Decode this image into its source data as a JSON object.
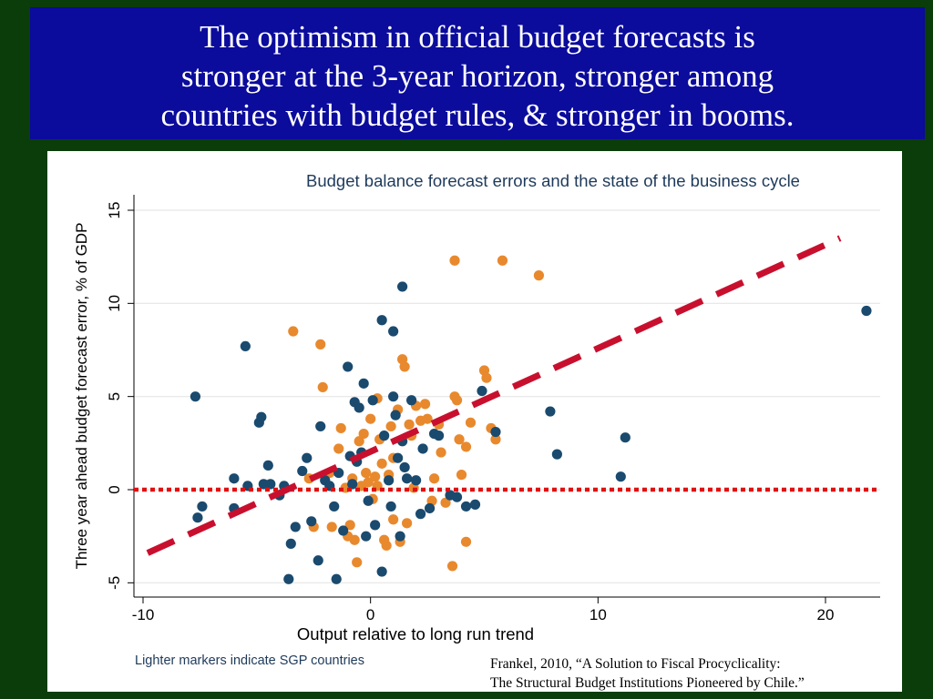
{
  "slide": {
    "title_lines": [
      "The optimism in official budget forecasts is",
      "stronger at the 3-year horizon, stronger among",
      "countries with budget rules,   & stronger in booms."
    ],
    "citation_lines": [
      "Frankel, 2010, “A Solution to Fiscal Procyclicality:",
      "The Structural Budget Institutions Pioneered by Chile.”"
    ],
    "colors": {
      "background": "#0b3d0b",
      "title_box": "#0b0b9c",
      "non_sgp_marker": "#1a4a6e",
      "sgp_marker": "#e8892e",
      "regression_line": "#c8102e",
      "zero_line": "#e01010"
    }
  },
  "chart_data": {
    "type": "scatter",
    "title": "Budget balance forecast errors and the state of the business cycle",
    "xlabel": "Output relative to long run trend",
    "ylabel": "Three year ahead budget forecast error, % of GDP",
    "note": "Lighter markers indicate SGP countries",
    "xlim": [
      -10,
      22
    ],
    "ylim": [
      -5,
      15
    ],
    "xticks": [
      -10,
      0,
      10,
      20
    ],
    "yticks": [
      -5,
      0,
      5,
      10,
      15
    ],
    "grid": true,
    "legend": "none",
    "series": [
      {
        "marker": "dark",
        "points": [
          [
            -7.7,
            5.0
          ],
          [
            -7.6,
            -1.5
          ],
          [
            -7.4,
            -0.9
          ],
          [
            -6.0,
            0.6
          ],
          [
            -6.0,
            -1.0
          ],
          [
            -5.5,
            7.7
          ],
          [
            -5.4,
            0.2
          ],
          [
            -4.9,
            3.6
          ],
          [
            -4.8,
            3.9
          ],
          [
            -4.7,
            0.3
          ],
          [
            -4.5,
            1.3
          ],
          [
            -4.4,
            0.3
          ],
          [
            -4.0,
            -0.3
          ],
          [
            -3.8,
            0.2
          ],
          [
            -3.6,
            -4.8
          ],
          [
            -3.5,
            -2.9
          ],
          [
            -3.3,
            -2.0
          ],
          [
            -3.0,
            1.0
          ],
          [
            -2.8,
            1.7
          ],
          [
            -2.6,
            -1.7
          ],
          [
            -2.3,
            -3.8
          ],
          [
            -2.2,
            3.4
          ],
          [
            -2.0,
            0.5
          ],
          [
            -1.8,
            0.2
          ],
          [
            -1.6,
            -0.9
          ],
          [
            -1.5,
            -4.8
          ],
          [
            -1.4,
            0.9
          ],
          [
            -1.2,
            -2.2
          ],
          [
            -1.0,
            6.6
          ],
          [
            -0.9,
            1.8
          ],
          [
            -0.8,
            0.3
          ],
          [
            -0.7,
            4.7
          ],
          [
            -0.6,
            1.5
          ],
          [
            -0.5,
            4.4
          ],
          [
            -0.4,
            2.0
          ],
          [
            -0.3,
            5.7
          ],
          [
            -0.2,
            -2.5
          ],
          [
            -0.1,
            -0.6
          ],
          [
            0.1,
            4.8
          ],
          [
            0.2,
            -1.9
          ],
          [
            0.5,
            9.1
          ],
          [
            0.5,
            -4.4
          ],
          [
            0.6,
            2.9
          ],
          [
            0.8,
            0.5
          ],
          [
            0.9,
            -0.9
          ],
          [
            1.0,
            8.5
          ],
          [
            1.0,
            5.0
          ],
          [
            1.1,
            4.0
          ],
          [
            1.2,
            1.7
          ],
          [
            1.3,
            -2.5
          ],
          [
            1.4,
            10.9
          ],
          [
            1.4,
            2.6
          ],
          [
            1.5,
            1.2
          ],
          [
            1.6,
            0.6
          ],
          [
            1.8,
            4.8
          ],
          [
            2.0,
            0.5
          ],
          [
            2.2,
            -1.3
          ],
          [
            2.3,
            2.2
          ],
          [
            2.6,
            -1.0
          ],
          [
            2.8,
            3.0
          ],
          [
            3.0,
            2.9
          ],
          [
            3.5,
            -0.3
          ],
          [
            3.8,
            -0.4
          ],
          [
            4.2,
            -0.9
          ],
          [
            4.6,
            -0.8
          ],
          [
            4.9,
            5.3
          ],
          [
            5.5,
            3.1
          ],
          [
            7.9,
            4.2
          ],
          [
            8.2,
            1.9
          ],
          [
            11.0,
            0.7
          ],
          [
            11.2,
            2.8
          ],
          [
            21.8,
            9.6
          ]
        ]
      },
      {
        "marker": "light",
        "points": [
          [
            -3.4,
            8.5
          ],
          [
            -2.7,
            0.6
          ],
          [
            -2.5,
            -2.0
          ],
          [
            -2.2,
            7.8
          ],
          [
            -2.1,
            5.5
          ],
          [
            -1.8,
            0.9
          ],
          [
            -1.7,
            -2.0
          ],
          [
            -1.4,
            2.2
          ],
          [
            -1.3,
            3.3
          ],
          [
            -1.1,
            0.1
          ],
          [
            -1.0,
            -2.5
          ],
          [
            -0.9,
            -1.9
          ],
          [
            -0.8,
            0.6
          ],
          [
            -0.7,
            -2.7
          ],
          [
            -0.6,
            -3.9
          ],
          [
            -0.5,
            2.6
          ],
          [
            -0.4,
            0.2
          ],
          [
            -0.3,
            3.0
          ],
          [
            -0.2,
            0.9
          ],
          [
            -0.1,
            0.4
          ],
          [
            0.0,
            3.8
          ],
          [
            0.1,
            -0.5
          ],
          [
            0.2,
            0.7
          ],
          [
            0.3,
            4.9
          ],
          [
            0.3,
            0.2
          ],
          [
            0.4,
            2.7
          ],
          [
            0.5,
            1.4
          ],
          [
            0.6,
            -2.7
          ],
          [
            0.7,
            -3.0
          ],
          [
            0.8,
            0.8
          ],
          [
            0.9,
            3.4
          ],
          [
            1.0,
            1.7
          ],
          [
            1.0,
            -1.6
          ],
          [
            1.2,
            4.3
          ],
          [
            1.3,
            -2.8
          ],
          [
            1.4,
            7.0
          ],
          [
            1.5,
            6.6
          ],
          [
            1.6,
            -1.8
          ],
          [
            1.7,
            3.5
          ],
          [
            1.8,
            2.9
          ],
          [
            1.9,
            0.1
          ],
          [
            2.0,
            4.5
          ],
          [
            2.2,
            3.7
          ],
          [
            2.4,
            4.6
          ],
          [
            2.5,
            3.8
          ],
          [
            2.7,
            -0.6
          ],
          [
            2.8,
            0.6
          ],
          [
            3.0,
            3.5
          ],
          [
            3.1,
            2.0
          ],
          [
            3.3,
            -0.7
          ],
          [
            3.6,
            -4.1
          ],
          [
            3.7,
            5.0
          ],
          [
            3.8,
            4.8
          ],
          [
            3.9,
            2.7
          ],
          [
            4.0,
            0.8
          ],
          [
            4.2,
            2.3
          ],
          [
            4.2,
            -2.8
          ],
          [
            4.4,
            3.6
          ],
          [
            5.0,
            6.4
          ],
          [
            5.1,
            6.0
          ],
          [
            5.3,
            3.3
          ],
          [
            5.5,
            2.7
          ],
          [
            3.7,
            12.3
          ],
          [
            5.8,
            12.3
          ],
          [
            7.4,
            11.5
          ]
        ]
      }
    ],
    "overlays": {
      "regression_line": [
        [
          -10,
          -3.4
        ],
        [
          22,
          13.5
        ]
      ],
      "zero_line": 0
    }
  }
}
